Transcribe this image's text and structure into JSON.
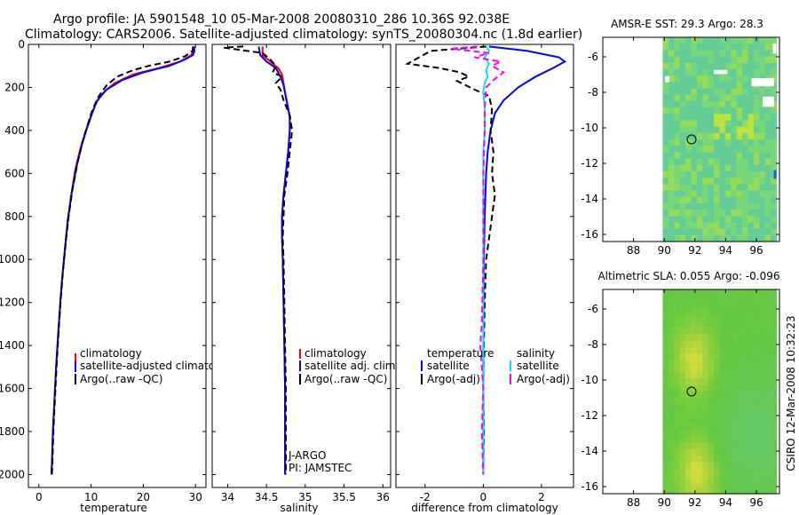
{
  "header": {
    "line1": "Argo profile: JA 5901548_10 05-Mar-2008 20080310_286 10.36S 92.038E",
    "line2": "Climatology: CARS2006. Satellite-adjusted climatology: synTS_20080304.nc (1.8d earlier)"
  },
  "side_label": "CSIRO 12-Mar-2008 10:32:23",
  "colors": {
    "climatology": "#ff0000",
    "satellite": "#0000ff",
    "argo": "#000000",
    "cyan": "#00e5ee",
    "magenta": "#ff00ff"
  },
  "chart_data": [
    {
      "type": "line",
      "id": "temperature",
      "xlabel": "temperature",
      "ylabel": "",
      "xlim": [
        -2,
        32
      ],
      "ylim": [
        2060,
        0
      ],
      "xticks": [
        0,
        10,
        20,
        30
      ],
      "xtick_labels": [
        "0",
        "10",
        "20",
        "30"
      ],
      "yticks": [
        0,
        200,
        400,
        600,
        800,
        1000,
        1200,
        1400,
        1600,
        1800,
        2000
      ],
      "ytick_labels": [
        "0",
        "200",
        "400",
        "600",
        "800",
        "1000",
        "1200",
        "1400",
        "1600",
        "1800",
        "2000"
      ],
      "legend": [
        "climatology",
        "satellite-adjusted climatology",
        "Argo(..raw -QC)"
      ],
      "series": [
        {
          "name": "climatology",
          "color": "#ff0000",
          "style": "solid",
          "points": [
            [
              29.5,
              10
            ],
            [
              29.5,
              30
            ],
            [
              29.2,
              50
            ],
            [
              27,
              80
            ],
            [
              23,
              110
            ],
            [
              18,
              140
            ],
            [
              14.5,
              180
            ],
            [
              12.5,
              220
            ],
            [
              11,
              270
            ],
            [
              10,
              330
            ],
            [
              9,
              400
            ],
            [
              8,
              480
            ],
            [
              7,
              580
            ],
            [
              6.2,
              700
            ],
            [
              5.5,
              820
            ],
            [
              5,
              950
            ],
            [
              4.5,
              1080
            ],
            [
              4.1,
              1200
            ],
            [
              3.7,
              1350
            ],
            [
              3.3,
              1500
            ],
            [
              3,
              1650
            ],
            [
              2.7,
              1800
            ],
            [
              2.5,
              1950
            ],
            [
              2.4,
              2000
            ]
          ]
        },
        {
          "name": "satellite-adjusted climatology",
          "color": "#0000ff",
          "style": "solid",
          "points": [
            [
              29.7,
              10
            ],
            [
              29.8,
              30
            ],
            [
              29.5,
              50
            ],
            [
              28,
              70
            ],
            [
              25,
              100
            ],
            [
              20,
              130
            ],
            [
              16,
              165
            ],
            [
              13,
              210
            ],
            [
              11.2,
              260
            ],
            [
              10.2,
              320
            ],
            [
              9.2,
              390
            ],
            [
              8.2,
              470
            ],
            [
              7.2,
              570
            ],
            [
              6.3,
              690
            ],
            [
              5.6,
              810
            ],
            [
              5,
              950
            ],
            [
              4.5,
              1080
            ],
            [
              4.1,
              1200
            ],
            [
              3.7,
              1350
            ],
            [
              3.3,
              1500
            ],
            [
              3,
              1650
            ],
            [
              2.7,
              1800
            ],
            [
              2.5,
              1950
            ],
            [
              2.4,
              2000
            ]
          ]
        },
        {
          "name": "Argo(..raw -QC)",
          "color": "#000000",
          "style": "dashed",
          "points": [
            [
              29.6,
              10
            ],
            [
              29.4,
              30
            ],
            [
              28,
              55
            ],
            [
              25,
              80
            ],
            [
              21,
              100
            ],
            [
              18,
              120
            ],
            [
              15,
              150
            ],
            [
              13,
              190
            ],
            [
              11.5,
              240
            ],
            [
              10.3,
              300
            ],
            [
              9.4,
              370
            ],
            [
              8.4,
              450
            ],
            [
              7.4,
              550
            ],
            [
              6.4,
              680
            ],
            [
              5.7,
              800
            ],
            [
              5.1,
              930
            ],
            [
              4.6,
              1060
            ],
            [
              4.2,
              1180
            ],
            [
              3.8,
              1330
            ],
            [
              3.4,
              1490
            ],
            [
              3.1,
              1640
            ],
            [
              2.8,
              1790
            ],
            [
              2.6,
              1940
            ],
            [
              2.5,
              2000
            ]
          ]
        }
      ]
    },
    {
      "type": "line",
      "id": "salinity",
      "xlabel": "salinity",
      "ylabel": "",
      "xlim": [
        33.8,
        36.1
      ],
      "ylim": [
        2060,
        0
      ],
      "xticks": [
        34,
        34.5,
        35,
        35.5,
        36
      ],
      "xtick_labels": [
        "34",
        "34.5",
        "35",
        "35.5",
        "36"
      ],
      "yticks": [
        0,
        200,
        400,
        600,
        800,
        1000,
        1200,
        1400,
        1600,
        1800,
        2000
      ],
      "legend": [
        "climatology",
        "satellite adj. clim.",
        "Argo(..raw -QC)"
      ],
      "annotations": [
        "J-ARGO",
        "PI: JAMSTEC"
      ],
      "series": [
        {
          "name": "climatology",
          "color": "#ff0000",
          "style": "solid",
          "points": [
            [
              34.45,
              10
            ],
            [
              34.45,
              50
            ],
            [
              34.55,
              80
            ],
            [
              34.65,
              110
            ],
            [
              34.7,
              140
            ],
            [
              34.72,
              180
            ],
            [
              34.75,
              250
            ],
            [
              34.8,
              330
            ],
            [
              34.8,
              400
            ],
            [
              34.78,
              500
            ],
            [
              34.75,
              600
            ],
            [
              34.72,
              700
            ],
            [
              34.7,
              800
            ],
            [
              34.7,
              900
            ],
            [
              34.71,
              1000
            ],
            [
              34.72,
              1200
            ],
            [
              34.73,
              1400
            ],
            [
              34.74,
              1600
            ],
            [
              34.74,
              1800
            ],
            [
              34.74,
              2000
            ]
          ]
        },
        {
          "name": "satellite adj. clim.",
          "color": "#0000ff",
          "style": "solid",
          "points": [
            [
              34.4,
              10
            ],
            [
              34.42,
              50
            ],
            [
              34.5,
              80
            ],
            [
              34.62,
              110
            ],
            [
              34.68,
              150
            ],
            [
              34.72,
              190
            ],
            [
              34.76,
              260
            ],
            [
              34.8,
              340
            ],
            [
              34.8,
              400
            ],
            [
              34.78,
              500
            ],
            [
              34.75,
              600
            ],
            [
              34.72,
              700
            ],
            [
              34.7,
              800
            ],
            [
              34.7,
              900
            ],
            [
              34.71,
              1000
            ],
            [
              34.72,
              1200
            ],
            [
              34.73,
              1400
            ],
            [
              34.74,
              1600
            ],
            [
              34.74,
              1800
            ],
            [
              34.74,
              2000
            ]
          ]
        },
        {
          "name": "Argo(..raw -QC)",
          "color": "#000000",
          "style": "dashed",
          "points": [
            [
              34.2,
              10
            ],
            [
              33.95,
              15
            ],
            [
              34.15,
              25
            ],
            [
              34.45,
              40
            ],
            [
              34.55,
              70
            ],
            [
              34.62,
              100
            ],
            [
              34.58,
              130
            ],
            [
              34.7,
              150
            ],
            [
              34.62,
              180
            ],
            [
              34.68,
              210
            ],
            [
              34.72,
              260
            ],
            [
              34.8,
              330
            ],
            [
              34.83,
              400
            ],
            [
              34.8,
              500
            ],
            [
              34.77,
              600
            ],
            [
              34.73,
              700
            ],
            [
              34.72,
              800
            ],
            [
              34.71,
              900
            ],
            [
              34.72,
              1000
            ],
            [
              34.73,
              1200
            ],
            [
              34.74,
              1400
            ],
            [
              34.75,
              1600
            ],
            [
              34.75,
              1800
            ],
            [
              34.75,
              2000
            ]
          ]
        }
      ]
    },
    {
      "type": "line",
      "id": "difference",
      "xlabel": "difference from climatology",
      "ylabel": "",
      "xlim": [
        -3,
        3.1
      ],
      "ylim": [
        2060,
        0
      ],
      "xticks": [
        -2,
        0,
        2
      ],
      "xtick_labels": [
        "-2",
        "0",
        "2"
      ],
      "yticks": [
        0,
        200,
        400,
        600,
        800,
        1000,
        1200,
        1400,
        1600,
        1800,
        2000
      ],
      "legend_headers": [
        "temperature",
        "salinity"
      ],
      "legend": [
        "satellite",
        "Argo(-adj)",
        "satellite",
        "Argo(-adj)"
      ],
      "series": [
        {
          "name": "temperature satellite",
          "color": "#0000ff",
          "style": "solid",
          "points": [
            [
              0.2,
              10
            ],
            [
              1.5,
              30
            ],
            [
              2.6,
              60
            ],
            [
              2.8,
              80
            ],
            [
              2.4,
              110
            ],
            [
              1.8,
              150
            ],
            [
              1.2,
              200
            ],
            [
              0.7,
              260
            ],
            [
              0.4,
              320
            ],
            [
              0.25,
              400
            ],
            [
              0.15,
              500
            ],
            [
              0.1,
              600
            ],
            [
              0.05,
              800
            ],
            [
              0.02,
              1000
            ],
            [
              0,
              1400
            ],
            [
              0,
              1800
            ],
            [
              0,
              2000
            ]
          ]
        },
        {
          "name": "temperature Argo(-adj)",
          "color": "#000000",
          "style": "dashed",
          "points": [
            [
              0.1,
              10
            ],
            [
              -1.8,
              30
            ],
            [
              -2.2,
              60
            ],
            [
              -2.6,
              90
            ],
            [
              -1.5,
              110
            ],
            [
              -0.8,
              130
            ],
            [
              -0.5,
              150
            ],
            [
              -0.9,
              170
            ],
            [
              -0.3,
              210
            ],
            [
              0.2,
              240
            ],
            [
              0.3,
              300
            ],
            [
              0.25,
              400
            ],
            [
              0.35,
              500
            ],
            [
              0.3,
              600
            ],
            [
              0.4,
              700
            ],
            [
              0.3,
              800
            ],
            [
              0.2,
              900
            ],
            [
              0.1,
              1000
            ],
            [
              0.05,
              1200
            ],
            [
              0.02,
              1400
            ],
            [
              0,
              1600
            ],
            [
              0.02,
              1800
            ],
            [
              0,
              2000
            ]
          ]
        },
        {
          "name": "salinity satellite",
          "color": "#00e5ee",
          "style": "solid",
          "points": [
            [
              0.1,
              10
            ],
            [
              0.2,
              30
            ],
            [
              0.05,
              60
            ],
            [
              0.2,
              90
            ],
            [
              0.1,
              120
            ],
            [
              0.15,
              150
            ],
            [
              0.05,
              180
            ],
            [
              0,
              220
            ],
            [
              0.05,
              300
            ],
            [
              0.05,
              400
            ],
            [
              0,
              500
            ],
            [
              0,
              600
            ],
            [
              0,
              800
            ],
            [
              0,
              1000
            ],
            [
              0,
              1400
            ],
            [
              0,
              1800
            ],
            [
              0,
              2000
            ]
          ]
        },
        {
          "name": "salinity Argo(-adj)",
          "color": "#ff00ff",
          "style": "dashed",
          "points": [
            [
              -0.2,
              10
            ],
            [
              -1.1,
              20
            ],
            [
              0.2,
              40
            ],
            [
              -0.3,
              60
            ],
            [
              0.6,
              80
            ],
            [
              0.3,
              100
            ],
            [
              0.7,
              130
            ],
            [
              0.4,
              160
            ],
            [
              0.1,
              200
            ],
            [
              0.05,
              300
            ],
            [
              0.05,
              400
            ],
            [
              0,
              600
            ],
            [
              0,
              800
            ],
            [
              0,
              1000
            ],
            [
              -0.05,
              1300
            ],
            [
              -0.1,
              1400
            ],
            [
              0,
              1600
            ],
            [
              -0.05,
              1800
            ],
            [
              0,
              2000
            ]
          ]
        }
      ]
    },
    {
      "type": "heatmap",
      "id": "amsre-sst",
      "title": "AMSR-E SST: 29.3 Argo: 28.3",
      "xlim": [
        86,
        97.5
      ],
      "ylim": [
        -16.4,
        -4.9
      ],
      "xticks": [
        88,
        90,
        92,
        94,
        96
      ],
      "xtick_labels": [
        "88",
        "90",
        "92",
        "94",
        "96"
      ],
      "yticks": [
        -6,
        -8,
        -10,
        -12,
        -14,
        -16
      ],
      "ytick_labels": [
        "-6",
        "-8",
        "-10",
        "-12",
        "-14",
        "-16"
      ],
      "data_extent_x": [
        89.9,
        97.3
      ],
      "marker": {
        "lon": 92.038,
        "lat": -10.36
      }
    },
    {
      "type": "heatmap",
      "id": "altimetric-sla",
      "title": "Altimetric SLA: 0.055 Argo: -0.096",
      "xlim": [
        86,
        97.5
      ],
      "ylim": [
        -16.4,
        -4.9
      ],
      "xticks": [
        88,
        90,
        92,
        94,
        96
      ],
      "xtick_labels": [
        "88",
        "90",
        "92",
        "94",
        "96"
      ],
      "yticks": [
        -6,
        -8,
        -10,
        -12,
        -14,
        -16
      ],
      "ytick_labels": [
        "-6",
        "-8",
        "-10",
        "-12",
        "-14",
        "-16"
      ],
      "data_extent_x": [
        89.9,
        97.3
      ],
      "marker": {
        "lon": 92.038,
        "lat": -10.36
      }
    }
  ]
}
